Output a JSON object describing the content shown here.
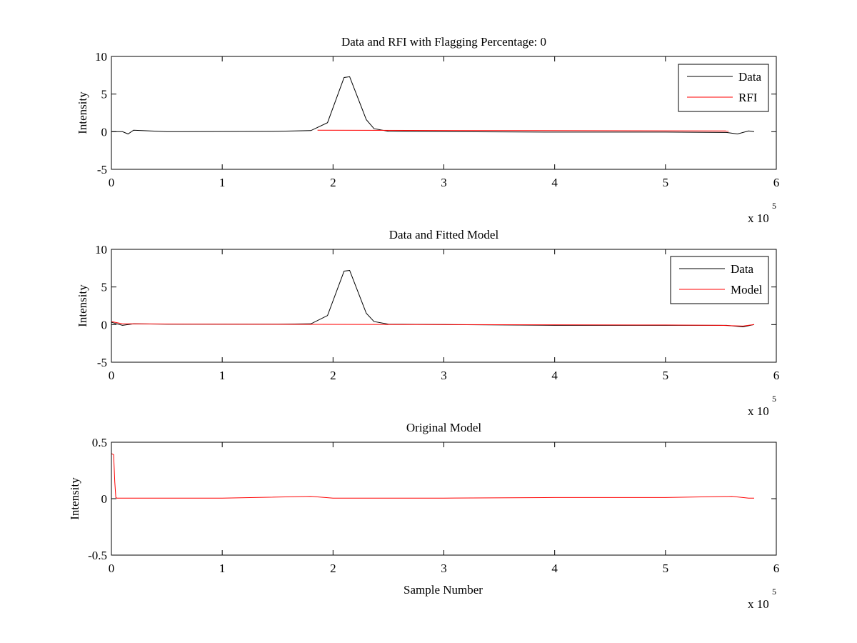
{
  "chart_data": [
    {
      "type": "line",
      "title": "Data and RFI with Flagging Percentage: 0",
      "xlabel": "",
      "ylabel": "Intensity",
      "xlim": [
        0,
        600000
      ],
      "ylim": [
        -5,
        10
      ],
      "xticks": [
        0,
        1,
        2,
        3,
        4,
        5,
        6
      ],
      "yticks": [
        -5,
        0,
        5,
        10
      ],
      "x_exponent": {
        "base": "x 10",
        "power": "5"
      },
      "grid": false,
      "legend_position": "top-right",
      "series": [
        {
          "name": "Data",
          "color": "#000000",
          "x": [
            0,
            10000,
            15000,
            20000,
            50000,
            150000,
            180000,
            195000,
            210000,
            215000,
            230000,
            237000,
            250000,
            300000,
            400000,
            500000,
            555000,
            565000,
            575000,
            580000
          ],
          "values": [
            0,
            0,
            -0.3,
            0.2,
            0,
            0.05,
            0.15,
            1.2,
            7.2,
            7.3,
            1.6,
            0.4,
            0.05,
            0,
            -0.05,
            -0.05,
            -0.1,
            -0.3,
            0.1,
            0
          ]
        },
        {
          "name": "RFI",
          "color": "#ff0000",
          "x": [
            186000,
            557000
          ],
          "values": [
            0.2,
            0.1
          ]
        }
      ]
    },
    {
      "type": "line",
      "title": "Data and Fitted Model",
      "xlabel": "",
      "ylabel": "Intensity",
      "xlim": [
        0,
        600000
      ],
      "ylim": [
        -5,
        10
      ],
      "xticks": [
        0,
        1,
        2,
        3,
        4,
        5,
        6
      ],
      "yticks": [
        -5,
        0,
        5,
        10
      ],
      "x_exponent": {
        "base": "x 10",
        "power": "5"
      },
      "grid": false,
      "legend_position": "top-right",
      "series": [
        {
          "name": "Data",
          "color": "#000000",
          "x": [
            0,
            10000,
            20000,
            50000,
            150000,
            180000,
            195000,
            210000,
            215000,
            230000,
            237000,
            250000,
            300000,
            400000,
            500000,
            555000,
            570000,
            580000
          ],
          "values": [
            0.3,
            -0.1,
            0.1,
            0.05,
            0.05,
            0.1,
            1.2,
            7.1,
            7.2,
            1.5,
            0.4,
            0.05,
            0,
            -0.1,
            -0.1,
            -0.1,
            -0.3,
            0
          ]
        },
        {
          "name": "Model",
          "color": "#ff0000",
          "x": [
            0,
            10000,
            20000,
            100000,
            300000,
            500000,
            550000,
            570000,
            580000
          ],
          "values": [
            0.4,
            0.1,
            0.1,
            0.05,
            0,
            -0.05,
            -0.1,
            -0.2,
            0
          ]
        }
      ]
    },
    {
      "type": "line",
      "title": "Original Model",
      "xlabel": "Sample Number",
      "ylabel": "Intensity",
      "xlim": [
        0,
        600000
      ],
      "ylim": [
        -0.5,
        0.5
      ],
      "xticks": [
        0,
        1,
        2,
        3,
        4,
        5,
        6
      ],
      "yticks": [
        -0.5,
        0,
        0.5
      ],
      "x_exponent": {
        "base": "x 10",
        "power": "5"
      },
      "grid": false,
      "series": [
        {
          "color": "#ff0000",
          "x": [
            0,
            2000,
            3000,
            4000,
            5000,
            100000,
            180000,
            200000,
            300000,
            400000,
            500000,
            560000,
            575000,
            580000
          ],
          "values": [
            0.4,
            0.39,
            0.15,
            0.01,
            0.005,
            0.005,
            0.02,
            0.005,
            0.005,
            0.01,
            0.01,
            0.02,
            0.005,
            0.005
          ]
        }
      ]
    }
  ]
}
